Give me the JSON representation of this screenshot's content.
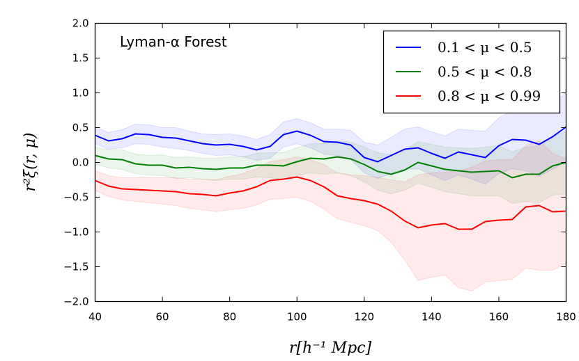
{
  "chart_data": {
    "type": "line",
    "title": "",
    "xlabel": "r[h⁻¹ Mpc]",
    "ylabel": "r²ξ(r, μ)",
    "xlim": [
      40,
      180
    ],
    "ylim": [
      -2.0,
      2.0
    ],
    "x_ticks": [
      40,
      60,
      80,
      100,
      120,
      140,
      160,
      180
    ],
    "x_tick_labels": [
      "40",
      "60",
      "80",
      "100",
      "120",
      "140",
      "160",
      "180"
    ],
    "y_ticks": [
      2.0,
      1.5,
      1.0,
      0.5,
      0.0,
      -0.5,
      -1.0,
      -1.5,
      -2.0
    ],
    "y_tick_labels": [
      "2.0",
      "1.5",
      "1.0",
      "0.5",
      "0.0",
      "−0.5",
      "−1.0",
      "−1.5",
      "−2.0"
    ],
    "grid": false,
    "annotation": "Lyman-α Forest",
    "legend_position": "top-right",
    "x": [
      40,
      44,
      48,
      52,
      56,
      60,
      64,
      68,
      72,
      76,
      80,
      84,
      88,
      92,
      96,
      100,
      104,
      108,
      112,
      116,
      120,
      124,
      128,
      132,
      136,
      140,
      144,
      148,
      152,
      156,
      160,
      164,
      168,
      172,
      176,
      180
    ],
    "series": [
      {
        "name": "0.1 < μ < 0.5",
        "color": "#0000ff",
        "values": [
          0.39,
          0.31,
          0.34,
          0.41,
          0.4,
          0.36,
          0.35,
          0.31,
          0.27,
          0.25,
          0.26,
          0.23,
          0.18,
          0.23,
          0.4,
          0.45,
          0.39,
          0.3,
          0.29,
          0.25,
          0.07,
          0.01,
          0.1,
          0.19,
          0.21,
          0.13,
          0.06,
          0.15,
          0.11,
          0.07,
          0.24,
          0.33,
          0.32,
          0.26,
          0.37,
          0.51
        ],
        "lower": [
          0.27,
          0.19,
          0.21,
          0.27,
          0.26,
          0.22,
          0.2,
          0.17,
          0.13,
          0.1,
          0.11,
          0.08,
          0.03,
          0.06,
          0.22,
          0.27,
          0.21,
          0.12,
          0.1,
          0.04,
          -0.15,
          -0.23,
          -0.16,
          -0.1,
          -0.09,
          -0.18,
          -0.26,
          -0.18,
          -0.24,
          -0.31,
          -0.16,
          -0.09,
          -0.12,
          -0.2,
          -0.1,
          0.02
        ],
        "upper": [
          0.51,
          0.43,
          0.47,
          0.55,
          0.54,
          0.5,
          0.5,
          0.45,
          0.41,
          0.4,
          0.41,
          0.38,
          0.33,
          0.4,
          0.58,
          0.63,
          0.57,
          0.48,
          0.48,
          0.46,
          0.29,
          0.25,
          0.36,
          0.48,
          0.51,
          0.44,
          0.38,
          0.48,
          0.46,
          0.45,
          0.64,
          0.75,
          0.76,
          0.72,
          0.84,
          1.0
        ]
      },
      {
        "name": "0.5 < μ < 0.8",
        "color": "#008000",
        "values": [
          0.1,
          0.05,
          0.04,
          -0.02,
          -0.04,
          -0.04,
          -0.08,
          -0.07,
          -0.09,
          -0.1,
          -0.08,
          -0.08,
          -0.04,
          -0.04,
          -0.05,
          0.01,
          0.06,
          0.05,
          0.08,
          0.05,
          -0.03,
          -0.13,
          -0.17,
          -0.11,
          0.0,
          -0.05,
          -0.1,
          -0.12,
          -0.14,
          -0.13,
          -0.12,
          -0.22,
          -0.17,
          -0.17,
          -0.05,
          0.0
        ],
        "lower": [
          -0.02,
          -0.08,
          -0.1,
          -0.16,
          -0.18,
          -0.19,
          -0.23,
          -0.22,
          -0.24,
          -0.26,
          -0.24,
          -0.24,
          -0.21,
          -0.22,
          -0.24,
          -0.19,
          -0.15,
          -0.17,
          -0.15,
          -0.19,
          -0.28,
          -0.4,
          -0.45,
          -0.4,
          -0.3,
          -0.36,
          -0.42,
          -0.45,
          -0.48,
          -0.48,
          -0.48,
          -0.59,
          -0.56,
          -0.58,
          -0.47,
          -0.45
        ],
        "upper": [
          0.22,
          0.18,
          0.18,
          0.12,
          0.1,
          0.11,
          0.07,
          0.08,
          0.06,
          0.06,
          0.08,
          0.08,
          0.13,
          0.14,
          0.14,
          0.21,
          0.27,
          0.27,
          0.31,
          0.29,
          0.22,
          0.14,
          0.11,
          0.18,
          0.3,
          0.26,
          0.22,
          0.21,
          0.2,
          0.22,
          0.24,
          0.15,
          0.22,
          0.24,
          0.37,
          0.45
        ]
      },
      {
        "name": "0.8 < μ < 0.99",
        "color": "#ff0000",
        "values": [
          -0.26,
          -0.34,
          -0.38,
          -0.39,
          -0.4,
          -0.41,
          -0.42,
          -0.45,
          -0.46,
          -0.48,
          -0.44,
          -0.41,
          -0.35,
          -0.26,
          -0.24,
          -0.21,
          -0.26,
          -0.35,
          -0.48,
          -0.52,
          -0.55,
          -0.6,
          -0.7,
          -0.84,
          -0.94,
          -0.9,
          -0.88,
          -0.96,
          -0.96,
          -0.85,
          -0.83,
          -0.82,
          -0.64,
          -0.62,
          -0.71,
          -0.7
        ],
        "lower": [
          -0.4,
          -0.49,
          -0.54,
          -0.56,
          -0.58,
          -0.6,
          -0.62,
          -0.66,
          -0.68,
          -0.71,
          -0.68,
          -0.66,
          -0.61,
          -0.53,
          -0.52,
          -0.5,
          -0.56,
          -0.67,
          -0.81,
          -0.86,
          -0.91,
          -0.98,
          -1.15,
          -1.4,
          -1.7,
          -1.65,
          -1.62,
          -1.8,
          -1.85,
          -1.72,
          -1.7,
          -1.68,
          -1.52,
          -1.55,
          -1.55,
          -1.45
        ],
        "upper": [
          -0.12,
          -0.19,
          -0.22,
          -0.22,
          -0.22,
          -0.22,
          -0.22,
          -0.24,
          -0.24,
          -0.25,
          -0.2,
          -0.16,
          -0.09,
          0.01,
          0.04,
          0.08,
          0.04,
          -0.03,
          -0.15,
          -0.18,
          -0.19,
          -0.22,
          -0.25,
          -0.28,
          -0.18,
          -0.15,
          -0.14,
          -0.12,
          -0.07,
          0.02,
          0.04,
          0.04,
          0.24,
          0.31,
          0.13,
          0.05
        ]
      }
    ]
  }
}
